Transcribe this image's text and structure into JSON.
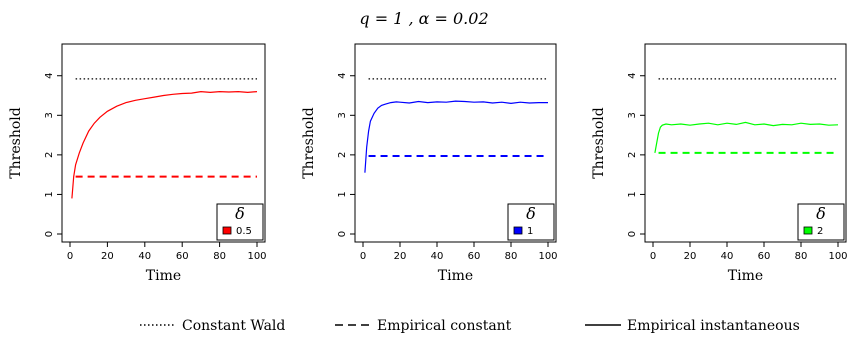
{
  "title": "q = 1 ,  α = 0.02",
  "chart_data": [
    {
      "type": "line",
      "xlabel": "Time",
      "ylabel": "Threshold",
      "xlim": [
        0,
        100
      ],
      "ylim": [
        0,
        4.6
      ],
      "xticks": [
        0,
        20,
        40,
        60,
        80,
        100
      ],
      "yticks": [
        0,
        1,
        2,
        3,
        4
      ],
      "legend_title": "δ",
      "legend_label": "0.5",
      "legend_placement": "bottom-right",
      "color": "#ff0000",
      "constant_wald": 3.92,
      "empirical_constant": 1.45,
      "empirical_instantaneous": {
        "x": [
          1,
          2,
          3,
          5,
          7,
          10,
          13,
          16,
          20,
          25,
          30,
          35,
          40,
          45,
          50,
          55,
          60,
          65,
          70,
          75,
          80,
          85,
          90,
          95,
          100
        ],
        "y": [
          0.9,
          1.45,
          1.75,
          2.05,
          2.3,
          2.6,
          2.8,
          2.95,
          3.1,
          3.23,
          3.32,
          3.38,
          3.42,
          3.46,
          3.5,
          3.53,
          3.55,
          3.56,
          3.6,
          3.58,
          3.6,
          3.59,
          3.6,
          3.58,
          3.6
        ]
      }
    },
    {
      "type": "line",
      "xlabel": "Time",
      "ylabel": "Threshold",
      "xlim": [
        0,
        100
      ],
      "ylim": [
        0,
        4.6
      ],
      "xticks": [
        0,
        20,
        40,
        60,
        80,
        100
      ],
      "yticks": [
        0,
        1,
        2,
        3,
        4
      ],
      "legend_title": "δ",
      "legend_label": "1",
      "legend_placement": "bottom-right",
      "color": "#0000ff",
      "constant_wald": 3.92,
      "empirical_constant": 1.97,
      "empirical_instantaneous": {
        "x": [
          1,
          2,
          3,
          4,
          6,
          8,
          10,
          12,
          15,
          18,
          20,
          25,
          30,
          35,
          40,
          45,
          50,
          55,
          60,
          65,
          70,
          75,
          80,
          85,
          90,
          95,
          100
        ],
        "y": [
          1.55,
          2.2,
          2.6,
          2.85,
          3.05,
          3.18,
          3.25,
          3.28,
          3.32,
          3.34,
          3.33,
          3.31,
          3.35,
          3.32,
          3.34,
          3.33,
          3.36,
          3.35,
          3.33,
          3.34,
          3.31,
          3.33,
          3.3,
          3.33,
          3.31,
          3.32,
          3.32
        ]
      }
    },
    {
      "type": "line",
      "xlabel": "Time",
      "ylabel": "Threshold",
      "xlim": [
        0,
        100
      ],
      "ylim": [
        0,
        4.6
      ],
      "xticks": [
        0,
        20,
        40,
        60,
        80,
        100
      ],
      "yticks": [
        0,
        1,
        2,
        3,
        4
      ],
      "legend_title": "δ",
      "legend_label": "2",
      "legend_placement": "bottom-right",
      "color": "#00ff00",
      "constant_wald": 3.92,
      "empirical_constant": 2.05,
      "empirical_instantaneous": {
        "x": [
          1,
          2,
          3,
          4,
          5,
          7,
          10,
          15,
          20,
          25,
          30,
          35,
          40,
          45,
          50,
          55,
          60,
          65,
          70,
          75,
          80,
          85,
          90,
          95,
          100
        ],
        "y": [
          2.05,
          2.3,
          2.55,
          2.7,
          2.75,
          2.78,
          2.76,
          2.78,
          2.75,
          2.78,
          2.8,
          2.76,
          2.8,
          2.77,
          2.82,
          2.76,
          2.78,
          2.74,
          2.77,
          2.76,
          2.8,
          2.77,
          2.78,
          2.75,
          2.76
        ]
      }
    }
  ],
  "bottom_legend": [
    {
      "label": "Constant Wald",
      "style": "dotted"
    },
    {
      "label": "Empirical constant",
      "style": "dashed"
    },
    {
      "label": "Empirical instantaneous",
      "style": "solid"
    }
  ]
}
